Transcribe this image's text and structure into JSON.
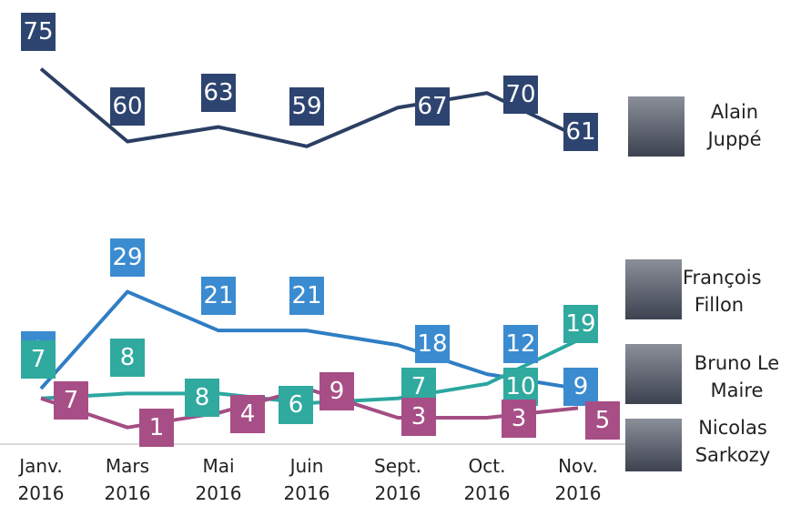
{
  "chart_data": {
    "type": "line",
    "categories": [
      "Janv. 2016",
      "Mars 2016",
      "Mai 2016",
      "Juin 2016",
      "Sept. 2016",
      "Oct. 2016",
      "Nov. 2016"
    ],
    "ylim": [
      0,
      80
    ],
    "series": [
      {
        "name": "Alain Juppé",
        "color": "#2b3f63",
        "values": [
          75,
          60,
          63,
          59,
          67,
          70,
          61
        ]
      },
      {
        "name": "François Fillon",
        "color": "#2f7ec4",
        "values": [
          9,
          29,
          21,
          21,
          18,
          12,
          9
        ]
      },
      {
        "name": "Bruno Le Maire",
        "color": "#2aa7a0",
        "values": [
          7,
          8,
          8,
          6,
          7,
          10,
          19
        ]
      },
      {
        "name": "Nicolas Sarkozy",
        "color": "#a34d83",
        "values": [
          7,
          1,
          4,
          9,
          3,
          3,
          5
        ]
      }
    ]
  }
}
